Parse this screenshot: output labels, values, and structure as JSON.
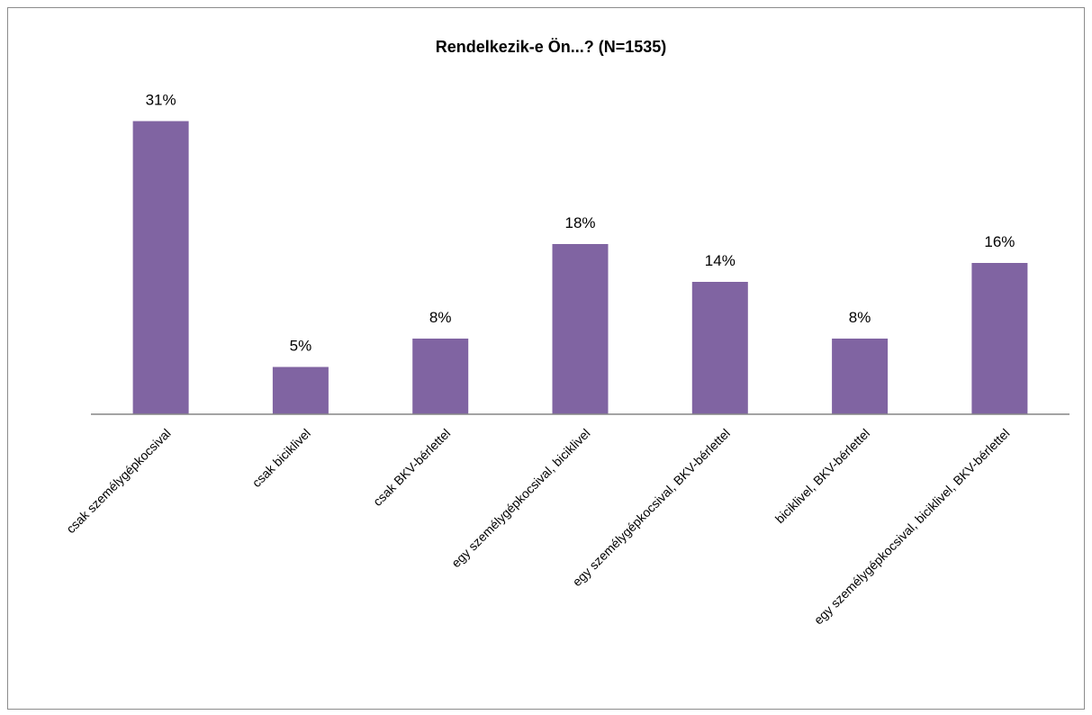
{
  "chart_data": {
    "type": "bar",
    "title": "Rendelkezik-e Ön...? (N=1535)",
    "xlabel": "",
    "ylabel": "",
    "categories": [
      "csak személygépkocsival",
      "csak biciklivel",
      "csak BKV-bérlettel",
      "egy személygépkocsival, biciklivel",
      "egy személygépkocsival, BKV-bérlettel",
      "biciklivel, BKV-bérlettel",
      "egy személygépkocsival, biciklivel, BKV-bérlettel"
    ],
    "values": [
      31,
      5,
      8,
      18,
      14,
      8,
      16
    ],
    "data_labels": [
      "31%",
      "5%",
      "8%",
      "18%",
      "14%",
      "8%",
      "16%"
    ],
    "ylim": [
      0,
      35
    ],
    "grid": false,
    "legend": "none",
    "bar_color": "#8064a2",
    "axis_color": "#868686"
  }
}
